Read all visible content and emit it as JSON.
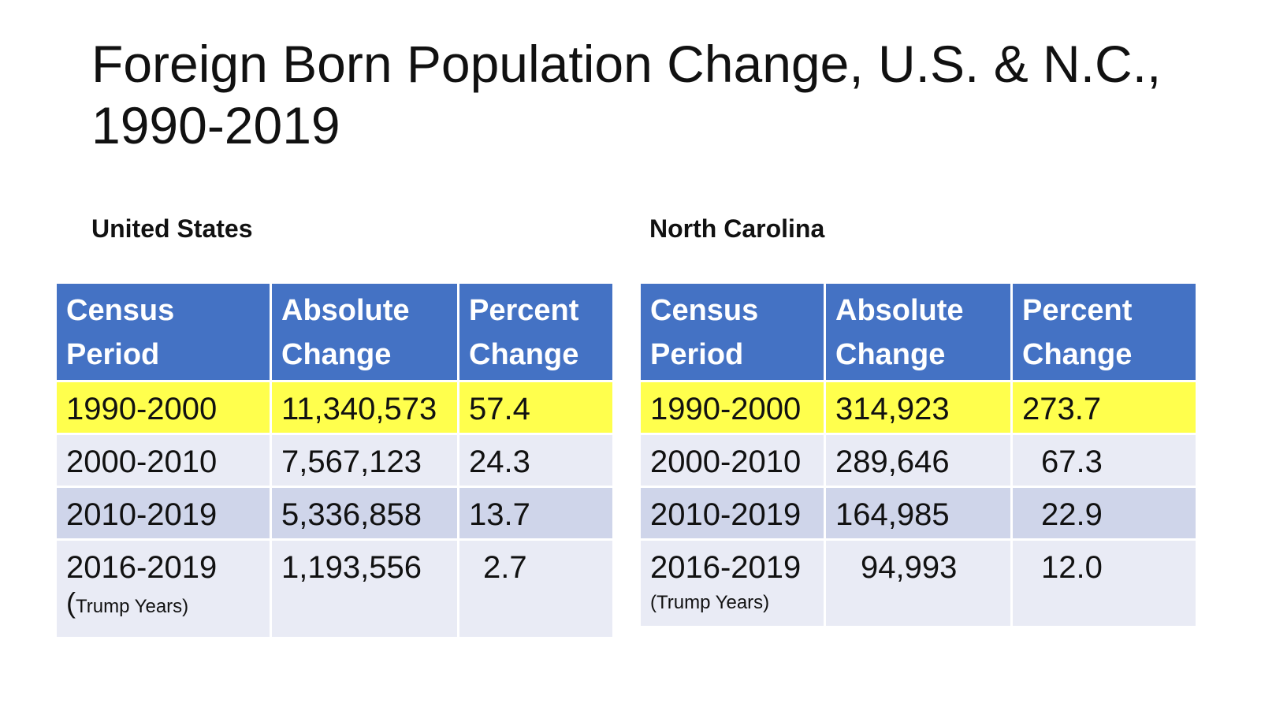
{
  "title": {
    "line1": "Foreign Born Population Change, U.S. & N.C.,",
    "line2": "1990-2019"
  },
  "colors": {
    "header": "#4472c4",
    "highlight": "#ffff4d",
    "row_light": "#e9ebf5",
    "row_mid": "#cfd5ea"
  },
  "us": {
    "label": "United States",
    "headers": [
      "Census Period",
      "Absolute Change",
      "Percent Change"
    ],
    "rows": [
      {
        "period": "1990-2000",
        "note": "",
        "absolute": "11,340,573",
        "percent": "57.4"
      },
      {
        "period": "2000-2010",
        "note": "",
        "absolute": "7,567,123",
        "percent": "24.3"
      },
      {
        "period": "2010-2019",
        "note": "",
        "absolute": "5,336,858",
        "percent": "13.7"
      },
      {
        "period": "2016-2019",
        "note_paren": "(",
        "note": "Trump Years)",
        "absolute": "1,193,556",
        "percent": "2.7"
      }
    ]
  },
  "nc": {
    "label": "North Carolina",
    "headers": [
      "Census Period",
      "Absolute Change",
      "Percent Change"
    ],
    "rows": [
      {
        "period": "1990-2000",
        "note": "",
        "absolute": "314,923",
        "percent": "273.7"
      },
      {
        "period": "2000-2010",
        "note": "",
        "absolute": "289,646",
        "percent": "67.3"
      },
      {
        "period": "2010-2019",
        "note": "",
        "absolute": "164,985",
        "percent": "22.9"
      },
      {
        "period": "2016-2019",
        "note": "(Trump Years)",
        "absolute": "94,993",
        "percent": "12.0"
      }
    ]
  },
  "chart_data": [
    {
      "type": "table",
      "title": "United States",
      "columns": [
        "Census Period",
        "Absolute Change",
        "Percent Change"
      ],
      "rows": [
        [
          "1990-2000",
          11340573,
          57.4
        ],
        [
          "2000-2010",
          7567123,
          24.3
        ],
        [
          "2010-2019",
          5336858,
          13.7
        ],
        [
          "2016-2019 (Trump Years)",
          1193556,
          2.7
        ]
      ],
      "highlighted_row": "1990-2000"
    },
    {
      "type": "table",
      "title": "North Carolina",
      "columns": [
        "Census Period",
        "Absolute Change",
        "Percent Change"
      ],
      "rows": [
        [
          "1990-2000",
          314923,
          273.7
        ],
        [
          "2000-2010",
          289646,
          67.3
        ],
        [
          "2010-2019",
          164985,
          22.9
        ],
        [
          "2016-2019 (Trump Years)",
          94993,
          12.0
        ]
      ],
      "highlighted_row": "1990-2000"
    }
  ]
}
